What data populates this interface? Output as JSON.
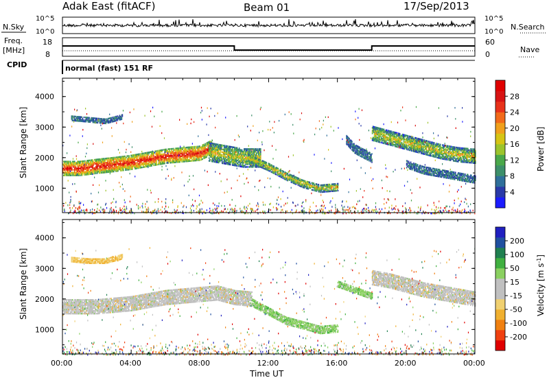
{
  "header": {
    "station": "Adak East (fitACF)",
    "beam": "Beam 01",
    "date": "17/Sep/2013"
  },
  "strip": {
    "nsky_label": "N.Sky",
    "nsky_ticks": [
      "10^5",
      "10^0"
    ],
    "nsearch_label": "N.Search",
    "nsearch_ticks": [
      "10^5",
      "10^0"
    ],
    "freq_label": "Freq.",
    "freq_unit": "[MHz]",
    "freq_ticks": [
      "18",
      "8"
    ],
    "nave_label": "Nave",
    "nave_ticks": [
      "60",
      "0"
    ],
    "cpid_label": "CPID",
    "cpid_text": "normal (fast) 151 RF"
  },
  "chart_data": [
    {
      "type": "heatmap",
      "name": "power",
      "ylabel": "Slant Range [km]",
      "yticks": [
        1000,
        2000,
        3000,
        4000
      ],
      "ylim": [
        200,
        4600
      ],
      "xlim": [
        0,
        24
      ],
      "colorbar": {
        "label": "Power [dB]",
        "ticks": [
          "4",
          "8",
          "12",
          "16",
          "20",
          "24",
          "28"
        ],
        "colors": [
          "#1c1cff",
          "#2a3aa8",
          "#2f6f9a",
          "#3d8f6a",
          "#4aa84a",
          "#9cc42c",
          "#d6c414",
          "#f0a01c",
          "#f26a1a",
          "#e8321a",
          "#d81414",
          "#e00000"
        ]
      },
      "bands": [
        {
          "x": [
            0.0,
            1.0,
            2.0,
            3.0,
            4.0,
            5.0,
            6.0,
            7.0,
            8.0,
            8.7
          ],
          "y": [
            1650,
            1650,
            1720,
            1780,
            1850,
            1950,
            2050,
            2100,
            2150,
            2350
          ],
          "thickness": 450,
          "level": "high"
        },
        {
          "x": [
            8.5,
            9.5,
            10.5,
            11.5
          ],
          "y": [
            2200,
            2100,
            2000,
            2000
          ],
          "thickness": 600,
          "level": "mid"
        },
        {
          "x": [
            10.8,
            12.0,
            13.0,
            14.0,
            15.0,
            16.0
          ],
          "y": [
            2000,
            1700,
            1400,
            1150,
            1000,
            1050
          ],
          "thickness": 250,
          "level": "mid"
        },
        {
          "x": [
            16.5,
            17.0,
            18.0
          ],
          "y": [
            2600,
            2300,
            2000
          ],
          "thickness": 300,
          "level": "low"
        },
        {
          "x": [
            18.0,
            19.0,
            20.0,
            21.0,
            22.0,
            23.0,
            24.0
          ],
          "y": [
            2800,
            2650,
            2500,
            2350,
            2200,
            2100,
            2050
          ],
          "thickness": 450,
          "level": "mid"
        },
        {
          "x": [
            20.0,
            21.0,
            22.0,
            23.0,
            24.0
          ],
          "y": [
            1800,
            1600,
            1500,
            1400,
            1300
          ],
          "thickness": 250,
          "level": "low"
        },
        {
          "x": [
            0.5,
            1.5,
            2.5,
            3.5
          ],
          "y": [
            3300,
            3250,
            3200,
            3350
          ],
          "thickness": 150,
          "level": "low"
        }
      ]
    },
    {
      "type": "heatmap",
      "name": "velocity",
      "ylabel": "Slant Range [km]",
      "yticks": [
        1000,
        2000,
        3000,
        4000
      ],
      "ylim": [
        200,
        4600
      ],
      "xlim": [
        0,
        24
      ],
      "colorbar": {
        "label": "Velocity [m s",
        "label_sup": "-1",
        "label_end": "]",
        "ticks": [
          "-200",
          "-100",
          "-50",
          "-15",
          "15",
          "50",
          "100",
          "200"
        ],
        "colors": [
          "#e00000",
          "#f04010",
          "#f08010",
          "#f0b030",
          "#f0d070",
          "#c0c0c0",
          "#c0c0c0",
          "#8ad060",
          "#40b040",
          "#208050",
          "#2050a0",
          "#2020c0"
        ]
      },
      "bands": [
        {
          "x": [
            0.0,
            1.0,
            2.0,
            3.0,
            4.0,
            5.0,
            6.0,
            7.0,
            8.0,
            9.0,
            10.0,
            11.0
          ],
          "y": [
            1750,
            1750,
            1750,
            1800,
            1850,
            1950,
            2050,
            2100,
            2150,
            2200,
            2050,
            2000
          ],
          "thickness": 450,
          "level": "grey"
        },
        {
          "x": [
            11.0,
            12.0,
            13.0,
            14.0,
            15.0,
            16.0
          ],
          "y": [
            1900,
            1600,
            1300,
            1150,
            1000,
            1050
          ],
          "thickness": 250,
          "level": "green"
        },
        {
          "x": [
            16.0,
            17.0,
            18.0
          ],
          "y": [
            2500,
            2300,
            2100
          ],
          "thickness": 200,
          "level": "green"
        },
        {
          "x": [
            18.0,
            19.0,
            20.0,
            21.0,
            22.0,
            23.0,
            24.0
          ],
          "y": [
            2700,
            2600,
            2450,
            2300,
            2200,
            2100,
            2000
          ],
          "thickness": 450,
          "level": "grey"
        },
        {
          "x": [
            0.5,
            1.5,
            2.5,
            3.5
          ],
          "y": [
            3300,
            3250,
            3250,
            3400
          ],
          "thickness": 150,
          "level": "orange"
        }
      ]
    }
  ],
  "xaxis": {
    "label": "Time UT",
    "ticks": [
      "00:00",
      "04:00",
      "08:00",
      "12:00",
      "16:00",
      "20:00",
      "00:00"
    ]
  }
}
